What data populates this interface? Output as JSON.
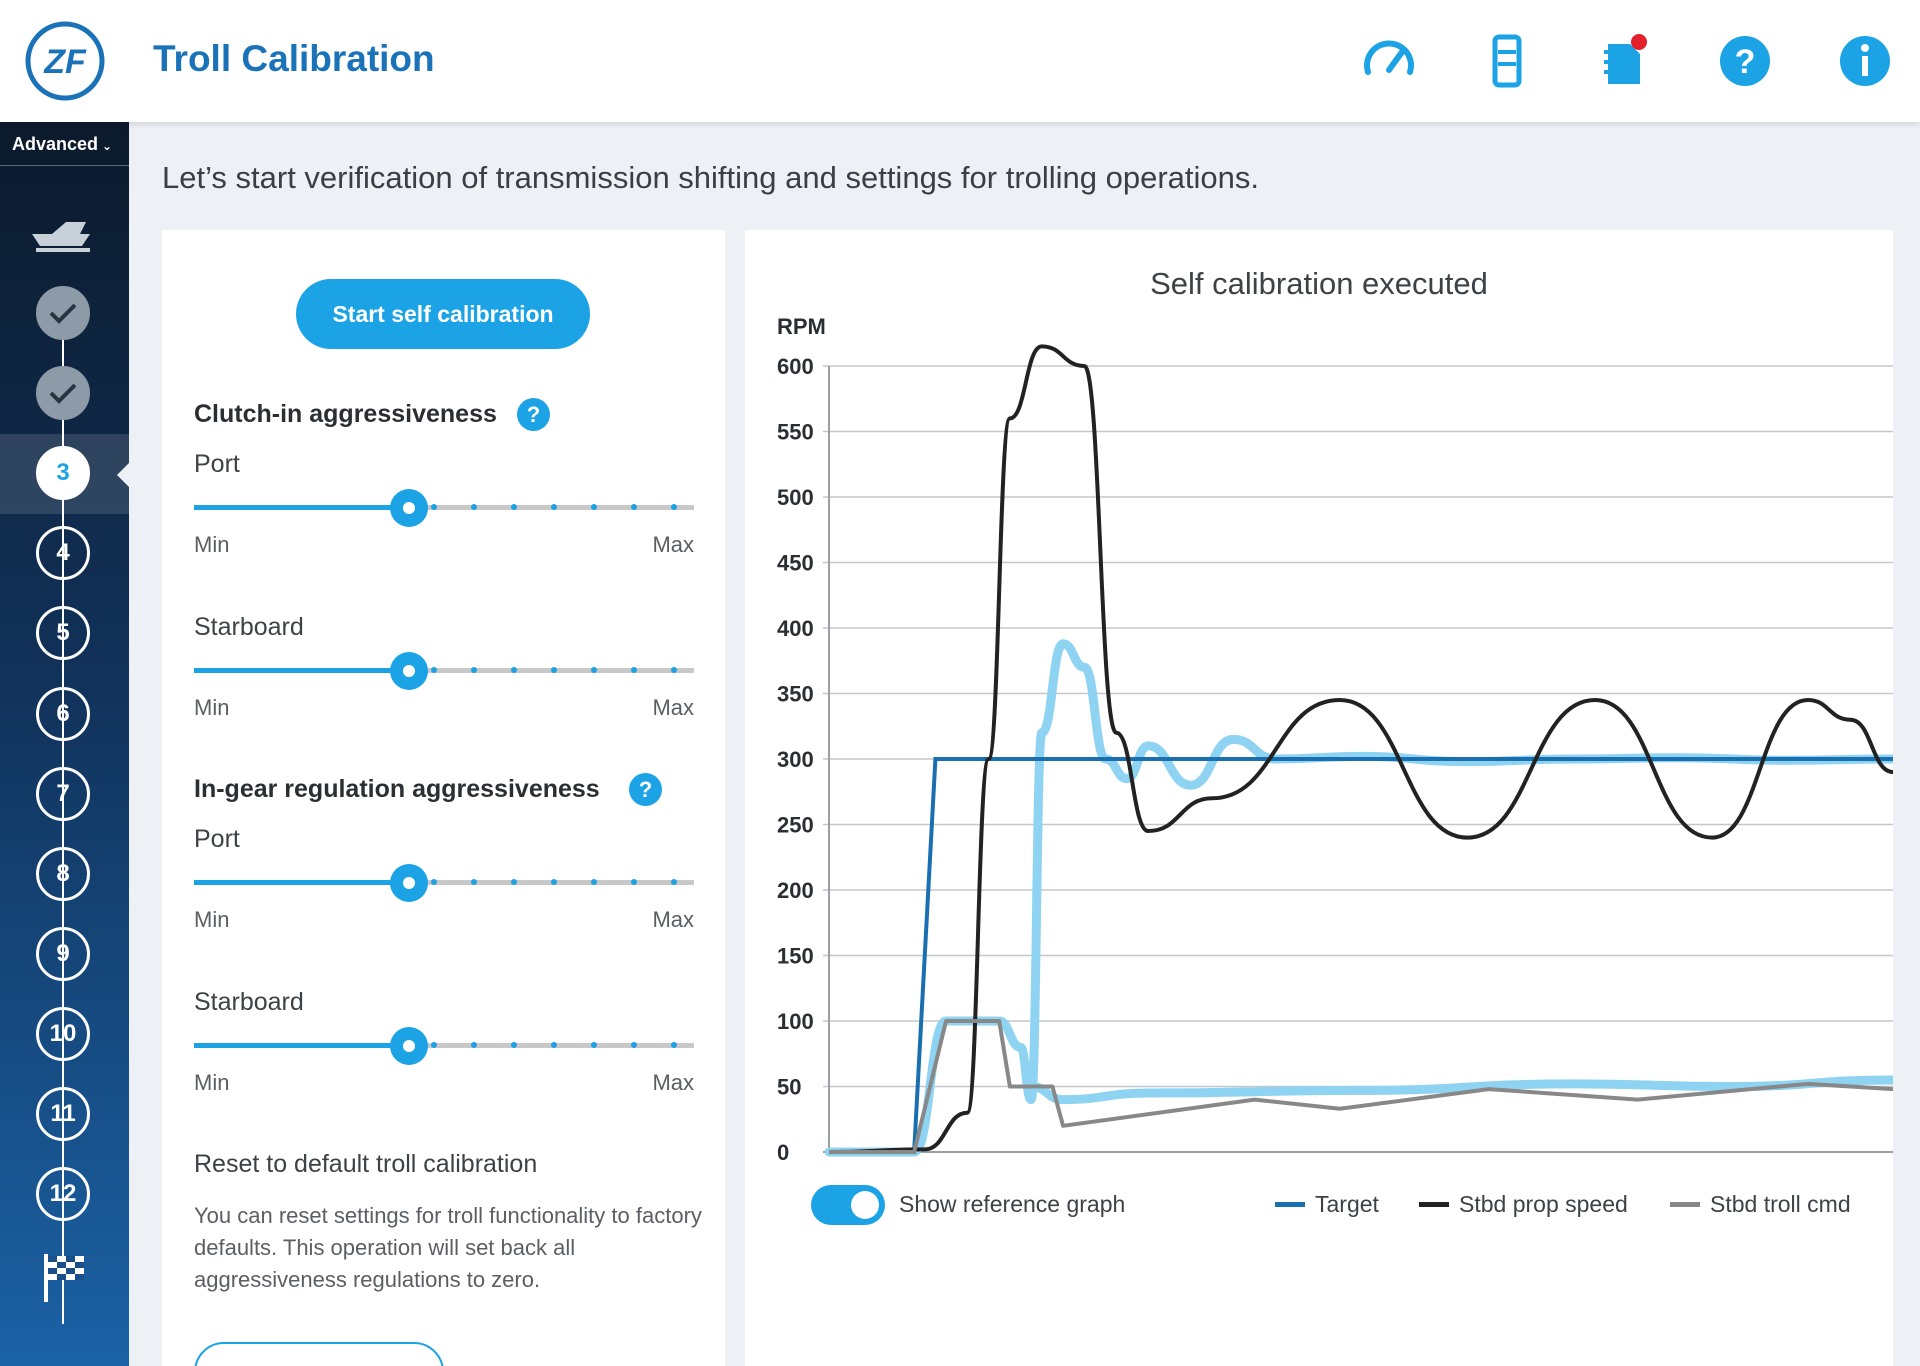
{
  "header": {
    "title": "Troll Calibration",
    "logo_text": "ZF",
    "icons": [
      "speedometer-icon",
      "battery-icon",
      "notebook-notification-icon",
      "help-icon",
      "info-icon"
    ]
  },
  "sidebar": {
    "mode": "Advanced",
    "steps": [
      {
        "label": "",
        "state": "done"
      },
      {
        "label": "",
        "state": "done"
      },
      {
        "label": "3",
        "state": "active"
      },
      {
        "label": "4",
        "state": "todo"
      },
      {
        "label": "5",
        "state": "todo"
      },
      {
        "label": "6",
        "state": "todo"
      },
      {
        "label": "7",
        "state": "todo"
      },
      {
        "label": "8",
        "state": "todo"
      },
      {
        "label": "9",
        "state": "todo"
      },
      {
        "label": "10",
        "state": "todo"
      },
      {
        "label": "11",
        "state": "todo"
      },
      {
        "label": "12",
        "state": "todo"
      }
    ]
  },
  "main": {
    "intro": "Let’s start verification of transmission shifting and settings for trolling operations."
  },
  "left": {
    "start_button": "Start self calibration",
    "clutch": {
      "title": "Clutch-in aggressiveness",
      "port_label": "Port",
      "port_value": 0.43,
      "starboard_label": "Starboard",
      "starboard_value": 0.43
    },
    "ingear": {
      "title": "In-gear regulation aggressiveness",
      "port_label": "Port",
      "port_value": 0.43,
      "starboard_label": "Starboard",
      "starboard_value": 0.43
    },
    "min_label": "Min",
    "max_label": "Max",
    "reset": {
      "title": "Reset to default troll calibration",
      "description": "You can reset settings for troll functionality to factory defaults. This operation will set back all aggressiveness regulations to zero."
    }
  },
  "chart_data": {
    "type": "line",
    "title": "Self calibration executed",
    "ylabel": "RPM",
    "ylim": [
      0,
      600
    ],
    "yticks": [
      0,
      50,
      100,
      150,
      200,
      250,
      300,
      350,
      400,
      450,
      500,
      550,
      600
    ],
    "grid": true,
    "legend_position": "bottom-right",
    "series": [
      {
        "name": "Target",
        "color": "#1a6fb0",
        "x": [
          0,
          0.08,
          0.1,
          1.0
        ],
        "values": [
          0,
          0,
          300,
          300
        ]
      },
      {
        "name": "Stbd prop speed",
        "color": "#222222",
        "x": [
          0,
          0.09,
          0.13,
          0.15,
          0.17,
          0.2,
          0.24,
          0.27,
          0.3,
          0.36,
          0.48,
          0.6,
          0.72,
          0.83,
          0.92,
          0.96,
          1.0
        ],
        "values": [
          0,
          2,
          30,
          300,
          560,
          615,
          600,
          320,
          245,
          270,
          345,
          240,
          345,
          240,
          345,
          330,
          290
        ]
      },
      {
        "name": "Stbd troll cmd",
        "color": "#888888",
        "x": [
          0,
          0.08,
          0.11,
          0.16,
          0.17,
          0.21,
          0.22,
          0.4,
          0.48,
          0.62,
          0.76,
          0.92,
          1.0
        ],
        "values": [
          0,
          0,
          100,
          100,
          50,
          50,
          20,
          40,
          33,
          48,
          40,
          52,
          48
        ]
      }
    ],
    "reference_series": {
      "color": "#8fd3f2",
      "x": [
        0,
        0.08,
        0.11,
        0.16,
        0.18,
        0.19,
        0.2,
        0.22,
        0.24,
        0.26,
        0.28,
        0.3,
        0.34,
        0.38,
        0.42,
        0.5,
        0.6,
        0.7,
        0.8,
        0.9,
        1.0
      ],
      "values": [
        0,
        0,
        100,
        100,
        80,
        40,
        320,
        388,
        370,
        300,
        285,
        310,
        280,
        315,
        300,
        302,
        298,
        300,
        301,
        299,
        300
      ],
      "low_values_x": [
        0.19,
        0.22,
        0.3,
        0.5,
        0.7,
        0.85,
        1.0
      ],
      "low_values": [
        50,
        40,
        45,
        47,
        52,
        50,
        55
      ]
    }
  },
  "chart_controls": {
    "toggle_label": "Show reference graph",
    "toggle_on": true
  }
}
